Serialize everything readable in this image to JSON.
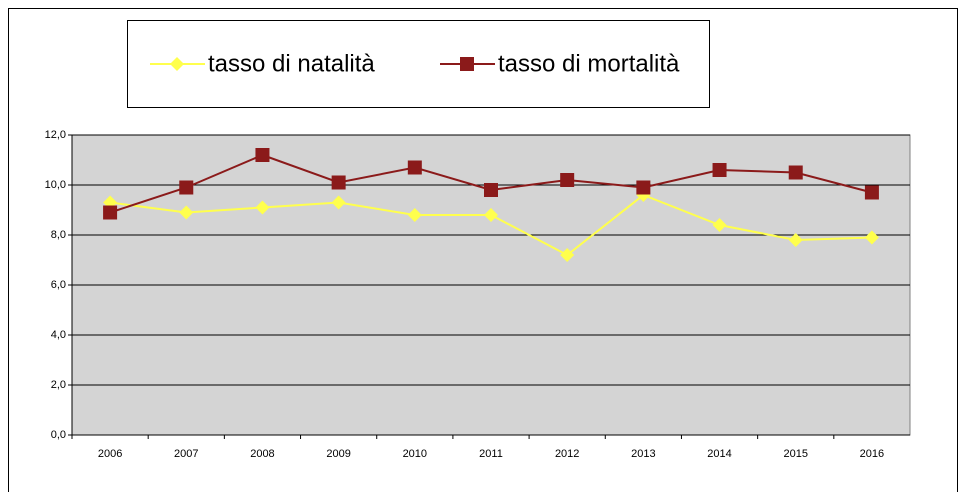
{
  "chart_data": {
    "type": "line",
    "categories": [
      "2006",
      "2007",
      "2008",
      "2009",
      "2010",
      "2011",
      "2012",
      "2013",
      "2014",
      "2015",
      "2016"
    ],
    "series": [
      {
        "name": "tasso di natalità",
        "color": "#ffff4d",
        "marker": "diamond",
        "values": [
          9.3,
          8.9,
          9.1,
          9.3,
          8.8,
          8.8,
          7.2,
          9.6,
          8.4,
          7.8,
          7.9
        ]
      },
      {
        "name": "tasso di mortalità",
        "color": "#8b1a1a",
        "marker": "square",
        "values": [
          8.9,
          9.9,
          11.2,
          10.1,
          10.7,
          9.8,
          10.2,
          9.9,
          10.6,
          10.5,
          9.7
        ]
      }
    ],
    "ylim": [
      0,
      12
    ],
    "yticks": [
      {
        "value": 0,
        "label": "0,0"
      },
      {
        "value": 2,
        "label": "2,0"
      },
      {
        "value": 4,
        "label": "4,0"
      },
      {
        "value": 6,
        "label": "6,0"
      },
      {
        "value": 8,
        "label": "8,0"
      },
      {
        "value": 10,
        "label": "10,0"
      },
      {
        "value": 12,
        "label": "12,0"
      }
    ],
    "grid": true,
    "legend": "top"
  }
}
